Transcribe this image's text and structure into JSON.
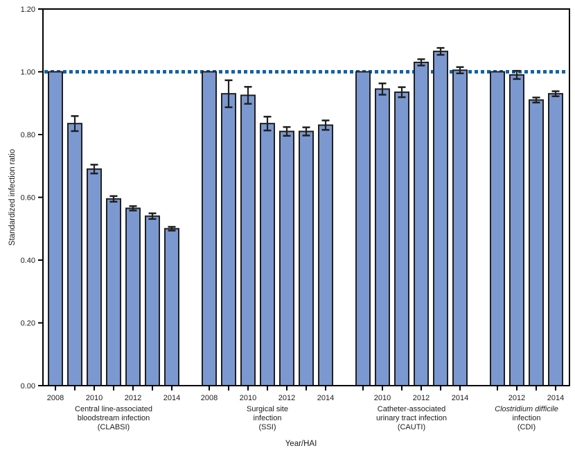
{
  "chart_data": {
    "type": "bar",
    "ylabel": "Standardized infection ratio",
    "xlabel": "Year/HAI",
    "ylim": [
      0.0,
      1.2
    ],
    "ytick_labels": [
      "0.00",
      "0.20",
      "0.40",
      "0.60",
      "0.80",
      "1.00",
      "1.20"
    ],
    "reference_line_y": 1.0,
    "grid": "off",
    "legend": "none",
    "error_bars": true,
    "colors": {
      "bar_fill": "#7B99D0",
      "bar_border": "#1F1F1F",
      "error_bar": "#1F1F1F",
      "reference_line": "#0E63A8",
      "axis": "#000000",
      "text": "#1A1A1A"
    },
    "groups": [
      {
        "id": "clabsi",
        "label_lines": [
          "Central line-associated",
          "bloodstream infection",
          "(CLABSI)"
        ],
        "label_line1_italic": false,
        "years": [
          2008,
          2009,
          2010,
          2011,
          2012,
          2013,
          2014
        ],
        "labeled_years": [
          2008,
          2010,
          2012,
          2014
        ],
        "values": [
          1.0,
          0.835,
          0.69,
          0.595,
          0.565,
          0.54,
          0.5
        ],
        "errors": [
          0,
          0.024,
          0.014,
          0.009,
          0.007,
          0.009,
          0.006
        ]
      },
      {
        "id": "ssi",
        "label_lines": [
          "Surgical site",
          "infection",
          "(SSI)"
        ],
        "label_line1_italic": false,
        "years": [
          2008,
          2009,
          2010,
          2011,
          2012,
          2013,
          2014
        ],
        "labeled_years": [
          2008,
          2010,
          2012,
          2014
        ],
        "values": [
          1.0,
          0.93,
          0.925,
          0.835,
          0.81,
          0.81,
          0.83
        ],
        "errors": [
          0,
          0.043,
          0.027,
          0.022,
          0.014,
          0.013,
          0.015
        ]
      },
      {
        "id": "cauti",
        "label_lines": [
          "Catheter-associated",
          "urinary tract infection",
          "(CAUTI)"
        ],
        "label_line1_italic": false,
        "years": [
          2009,
          2010,
          2011,
          2012,
          2013,
          2014
        ],
        "labeled_years": [
          2010,
          2012,
          2014
        ],
        "values": [
          1.0,
          0.945,
          0.935,
          1.03,
          1.065,
          1.005
        ],
        "errors": [
          0,
          0.018,
          0.016,
          0.01,
          0.011,
          0.01
        ]
      },
      {
        "id": "cdi",
        "label_lines": [
          "Clostridium difficile",
          "infection",
          "(CDI)"
        ],
        "label_line1_italic": true,
        "years": [
          2011,
          2012,
          2013,
          2014
        ],
        "labeled_years": [
          2012,
          2014
        ],
        "values": [
          1.0,
          0.99,
          0.91,
          0.93
        ],
        "errors": [
          0,
          0.013,
          0.008,
          0.008
        ]
      }
    ]
  }
}
